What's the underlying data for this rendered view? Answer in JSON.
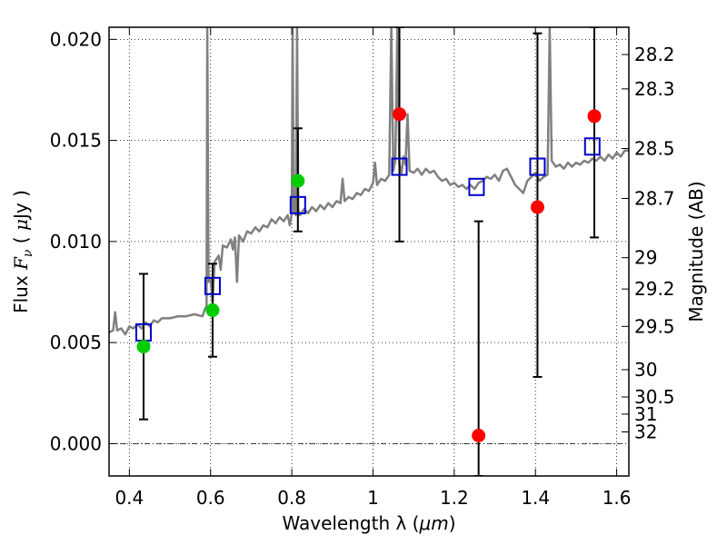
{
  "chart_data": {
    "type": "scatter",
    "x_axis": {
      "label_text": "Wavelength  λ (",
      "label_unit": "μm",
      "label_close": ")",
      "range": [
        0.35,
        1.63
      ],
      "ticks": [
        0.4,
        0.6,
        0.8,
        1.0,
        1.2,
        1.4,
        1.6
      ],
      "tick_labels": [
        "0.4",
        "0.6",
        "0.8",
        "1",
        "1.2",
        "1.4",
        "1.6"
      ]
    },
    "y_axis": {
      "label_flux": "Flux  ",
      "label_symbol": "F",
      "label_sub": "ν",
      "label_unit_open": "  ( ",
      "label_mu": "μ",
      "label_unit_close": "Jy )",
      "range": [
        -0.0016,
        0.0206
      ],
      "ticks": [
        0.0,
        0.005,
        0.01,
        0.015,
        0.02
      ],
      "tick_labels": [
        "0.000",
        "0.005",
        "0.010",
        "0.015",
        "0.020"
      ]
    },
    "y2_axis": {
      "label": "Magnitude (AB)",
      "ticks": [
        {
          "mag": "28.2",
          "flux": 0.01925
        },
        {
          "mag": "28.3",
          "flux": 0.01755
        },
        {
          "mag": "28.5",
          "flux": 0.0146
        },
        {
          "mag": "28.7",
          "flux": 0.01213
        },
        {
          "mag": "29",
          "flux": 0.0092
        },
        {
          "mag": "29.2",
          "flux": 0.00765
        },
        {
          "mag": "29.5",
          "flux": 0.0058
        },
        {
          "mag": "30",
          "flux": 0.00366
        },
        {
          "mag": "30.5",
          "flux": 0.00231
        },
        {
          "mag": "31",
          "flux": 0.00146
        },
        {
          "mag": "32",
          "flux": 0.00058
        }
      ]
    },
    "grid": true,
    "zero_line": true,
    "model_spectrum": {
      "color": "#808080",
      "points": [
        [
          0.35,
          0.0055
        ],
        [
          0.36,
          0.0056
        ],
        [
          0.365,
          0.0065
        ],
        [
          0.37,
          0.0056
        ],
        [
          0.38,
          0.0057
        ],
        [
          0.39,
          0.0054
        ],
        [
          0.4,
          0.0058
        ],
        [
          0.41,
          0.0057
        ],
        [
          0.42,
          0.0059
        ],
        [
          0.43,
          0.0057
        ],
        [
          0.44,
          0.006
        ],
        [
          0.45,
          0.0058
        ],
        [
          0.46,
          0.0061
        ],
        [
          0.47,
          0.006
        ],
        [
          0.48,
          0.0062
        ],
        [
          0.5,
          0.0062
        ],
        [
          0.52,
          0.0063
        ],
        [
          0.54,
          0.0063
        ],
        [
          0.56,
          0.0064
        ],
        [
          0.58,
          0.0063
        ],
        [
          0.585,
          0.0066
        ],
        [
          0.59,
          0.0068
        ],
        [
          0.592,
          0.0206
        ],
        [
          0.595,
          0.008
        ],
        [
          0.6,
          0.0082
        ],
        [
          0.605,
          0.007
        ],
        [
          0.61,
          0.009
        ],
        [
          0.62,
          0.0093
        ],
        [
          0.625,
          0.0086
        ],
        [
          0.63,
          0.0098
        ],
        [
          0.64,
          0.0097
        ],
        [
          0.65,
          0.0101
        ],
        [
          0.655,
          0.0096
        ],
        [
          0.66,
          0.0102
        ],
        [
          0.665,
          0.008
        ],
        [
          0.67,
          0.0103
        ],
        [
          0.68,
          0.01
        ],
        [
          0.69,
          0.0105
        ],
        [
          0.7,
          0.0104
        ],
        [
          0.71,
          0.0107
        ],
        [
          0.72,
          0.0105
        ],
        [
          0.73,
          0.0108
        ],
        [
          0.74,
          0.0107
        ],
        [
          0.75,
          0.0111
        ],
        [
          0.76,
          0.0109
        ],
        [
          0.77,
          0.0112
        ],
        [
          0.78,
          0.011
        ],
        [
          0.79,
          0.0113
        ],
        [
          0.795,
          0.0108
        ],
        [
          0.8,
          0.0114
        ],
        [
          0.802,
          0.0206
        ],
        [
          0.805,
          0.0115
        ],
        [
          0.81,
          0.0113
        ],
        [
          0.813,
          0.0206
        ],
        [
          0.816,
          0.0116
        ],
        [
          0.82,
          0.0113
        ],
        [
          0.83,
          0.0116
        ],
        [
          0.84,
          0.0114
        ],
        [
          0.85,
          0.0117
        ],
        [
          0.86,
          0.0115
        ],
        [
          0.87,
          0.0118
        ],
        [
          0.88,
          0.0116
        ],
        [
          0.89,
          0.0119
        ],
        [
          0.9,
          0.0117
        ],
        [
          0.91,
          0.012
        ],
        [
          0.92,
          0.0119
        ],
        [
          0.925,
          0.0131
        ],
        [
          0.93,
          0.012
        ],
        [
          0.94,
          0.0122
        ],
        [
          0.95,
          0.0121
        ],
        [
          0.96,
          0.0124
        ],
        [
          0.97,
          0.0123
        ],
        [
          0.98,
          0.0126
        ],
        [
          0.99,
          0.0125
        ],
        [
          1.0,
          0.0129
        ],
        [
          1.005,
          0.0139
        ],
        [
          1.01,
          0.0128
        ],
        [
          1.02,
          0.0131
        ],
        [
          1.03,
          0.013
        ],
        [
          1.04,
          0.0133
        ],
        [
          1.045,
          0.0206
        ],
        [
          1.05,
          0.0135
        ],
        [
          1.055,
          0.014
        ],
        [
          1.06,
          0.0206
        ],
        [
          1.065,
          0.0138
        ],
        [
          1.07,
          0.0134
        ],
        [
          1.075,
          0.0142
        ],
        [
          1.08,
          0.0138
        ],
        [
          1.085,
          0.0163
        ],
        [
          1.09,
          0.0135
        ],
        [
          1.1,
          0.0134
        ],
        [
          1.11,
          0.0136
        ],
        [
          1.12,
          0.0133
        ],
        [
          1.13,
          0.0136
        ],
        [
          1.14,
          0.0134
        ],
        [
          1.15,
          0.0135
        ],
        [
          1.16,
          0.0132
        ],
        [
          1.17,
          0.013
        ],
        [
          1.18,
          0.0131
        ],
        [
          1.19,
          0.0128
        ],
        [
          1.2,
          0.0129
        ],
        [
          1.21,
          0.0127
        ],
        [
          1.22,
          0.0128
        ],
        [
          1.23,
          0.0126
        ],
        [
          1.24,
          0.0128
        ],
        [
          1.25,
          0.0126
        ],
        [
          1.26,
          0.0129
        ],
        [
          1.27,
          0.013
        ],
        [
          1.28,
          0.0132
        ],
        [
          1.29,
          0.0131
        ],
        [
          1.3,
          0.0133
        ],
        [
          1.31,
          0.013
        ],
        [
          1.32,
          0.0135
        ],
        [
          1.33,
          0.0136
        ],
        [
          1.34,
          0.0132
        ],
        [
          1.35,
          0.0128
        ],
        [
          1.36,
          0.0126
        ],
        [
          1.37,
          0.0124
        ],
        [
          1.38,
          0.013
        ],
        [
          1.39,
          0.0132
        ],
        [
          1.4,
          0.0134
        ],
        [
          1.41,
          0.013
        ],
        [
          1.42,
          0.0132
        ],
        [
          1.43,
          0.0133
        ],
        [
          1.435,
          0.0206
        ],
        [
          1.44,
          0.014
        ],
        [
          1.45,
          0.0137
        ],
        [
          1.46,
          0.0138
        ],
        [
          1.47,
          0.0136
        ],
        [
          1.48,
          0.0139
        ],
        [
          1.49,
          0.0137
        ],
        [
          1.5,
          0.0139
        ],
        [
          1.51,
          0.0138
        ],
        [
          1.52,
          0.014
        ],
        [
          1.53,
          0.0139
        ],
        [
          1.54,
          0.0141
        ],
        [
          1.55,
          0.014
        ],
        [
          1.56,
          0.0142
        ],
        [
          1.57,
          0.014
        ],
        [
          1.58,
          0.0143
        ],
        [
          1.59,
          0.0141
        ],
        [
          1.6,
          0.0144
        ],
        [
          1.61,
          0.0142
        ],
        [
          1.62,
          0.0145
        ],
        [
          1.63,
          0.0145
        ]
      ]
    },
    "model_points": {
      "color": "#0000cc",
      "points": [
        [
          0.435,
          0.0055
        ],
        [
          0.605,
          0.0078
        ],
        [
          0.815,
          0.0118
        ],
        [
          1.065,
          0.0137
        ],
        [
          1.255,
          0.0127
        ],
        [
          1.405,
          0.0137
        ],
        [
          1.54,
          0.0147
        ]
      ]
    },
    "detections": {
      "color": "#00cc00",
      "points": [
        {
          "x": 0.435,
          "y": 0.0048,
          "err_low": 0.0012,
          "err_high": 0.0084
        },
        {
          "x": 0.605,
          "y": 0.0066,
          "err_low": 0.0043,
          "err_high": 0.0089
        },
        {
          "x": 0.815,
          "y": 0.013,
          "err_low": 0.0105,
          "err_high": 0.0156
        }
      ]
    },
    "upper_limits": {
      "color": "#ff0000",
      "points": [
        {
          "x": 1.065,
          "y": 0.0163,
          "err_low": 0.01,
          "err_high": 0.0206
        },
        {
          "x": 1.26,
          "y": 0.0004,
          "err_low": -0.0016,
          "err_high": 0.011
        },
        {
          "x": 1.405,
          "y": 0.0117,
          "err_low": 0.0033,
          "err_high": 0.0203
        },
        {
          "x": 1.545,
          "y": 0.0162,
          "err_low": 0.0102,
          "err_high": 0.0206
        }
      ]
    }
  }
}
